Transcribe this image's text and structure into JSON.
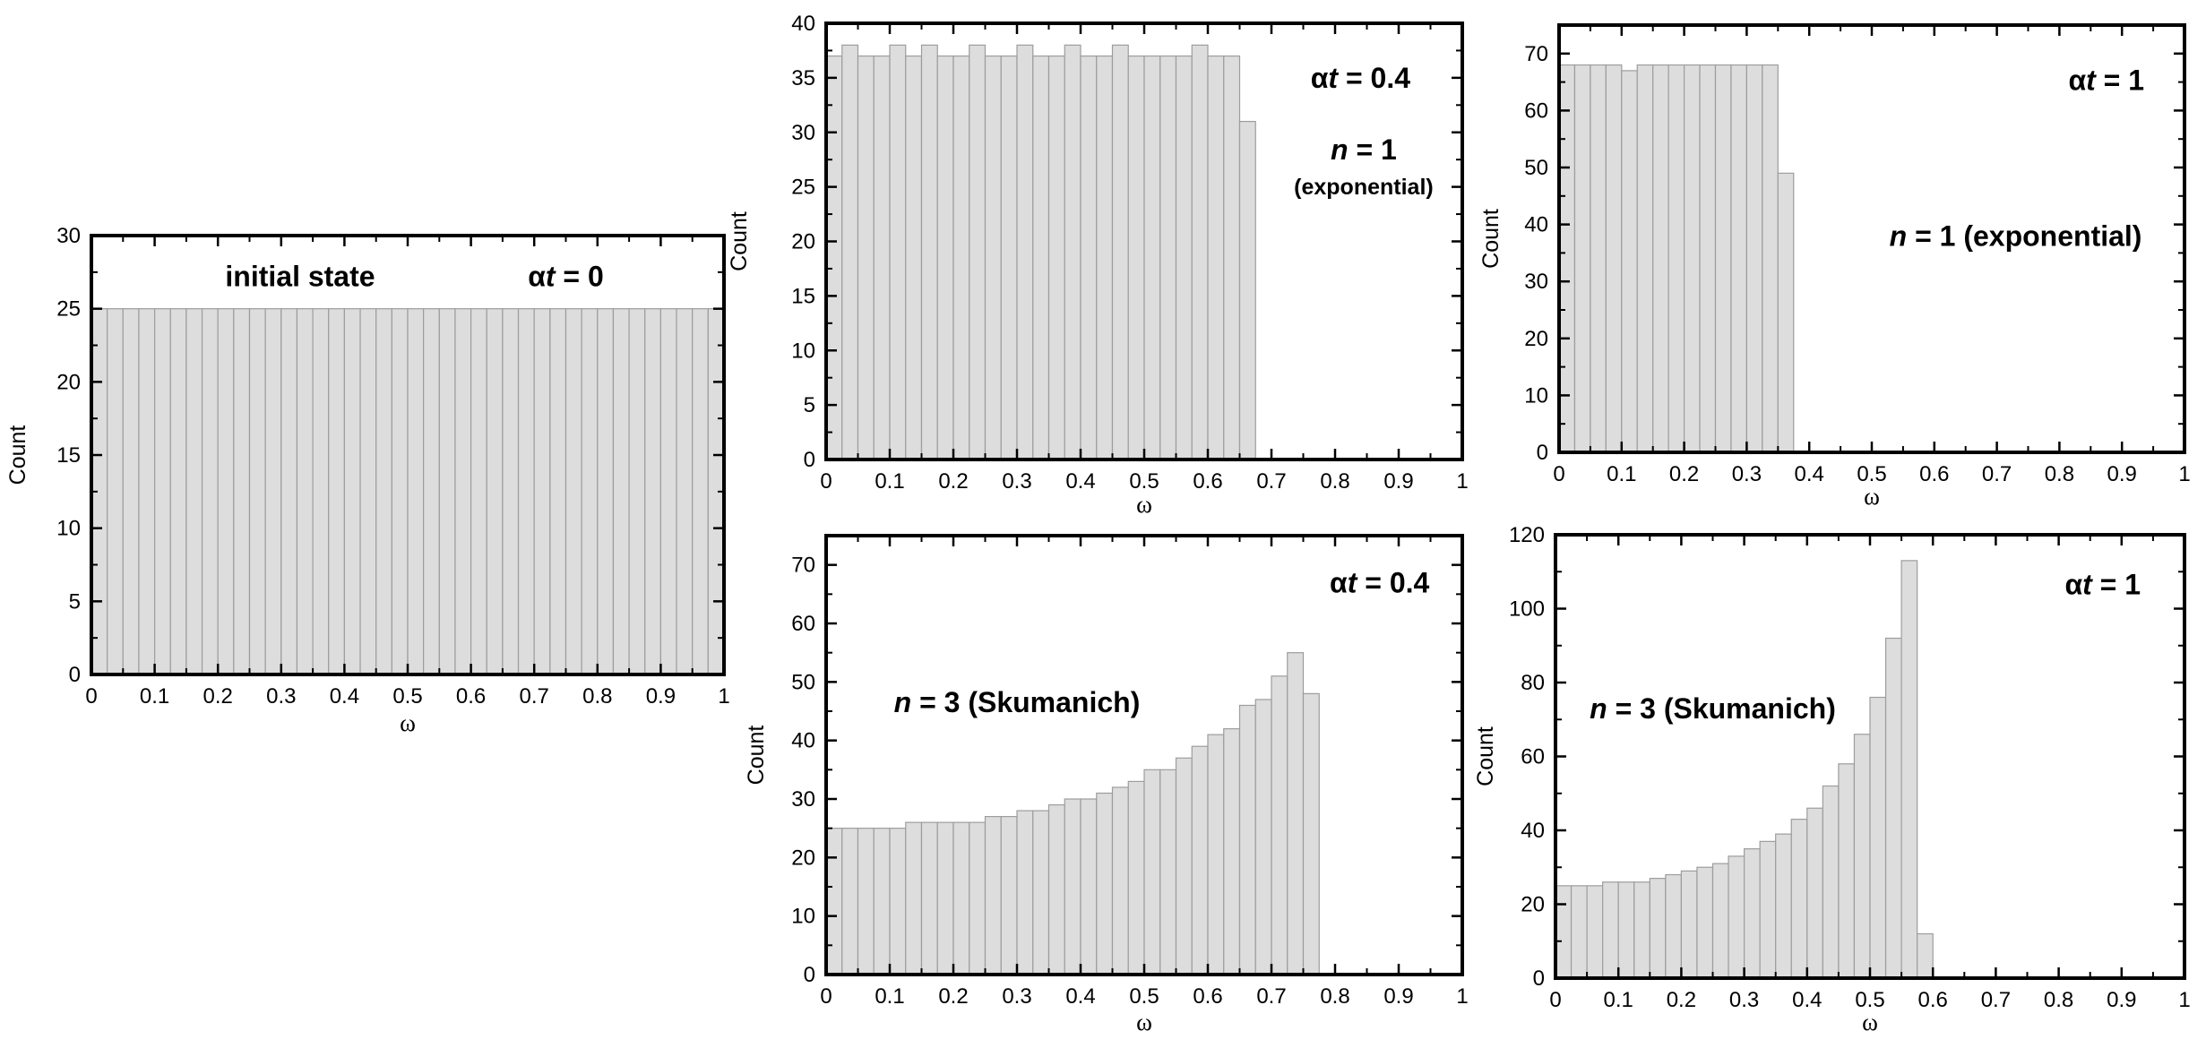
{
  "chart_data": [
    {
      "id": "panel-initial",
      "type": "bar",
      "title": "",
      "xlabel": "ω",
      "ylabel": "Count",
      "xlim": [
        0,
        1
      ],
      "ylim": [
        0,
        30
      ],
      "yticks": [
        0,
        5,
        10,
        15,
        20,
        25,
        30
      ],
      "xticks": [
        0,
        0.1,
        0.2,
        0.3,
        0.4,
        0.5,
        0.6,
        0.7,
        0.8,
        0.9,
        1
      ],
      "bin_width": 0.025,
      "values": [
        25,
        25,
        25,
        25,
        25,
        25,
        25,
        25,
        25,
        25,
        25,
        25,
        25,
        25,
        25,
        25,
        25,
        25,
        25,
        25,
        25,
        25,
        25,
        25,
        25,
        25,
        25,
        25,
        25,
        25,
        25,
        25,
        25,
        25,
        25,
        25,
        25,
        25,
        25,
        25
      ],
      "annotations": [
        {
          "parts": [
            {
              "text": "initial state"
            }
          ],
          "x": 0.33,
          "y": 27.2,
          "anchor": "middle",
          "size": "large"
        },
        {
          "parts": [
            {
              "text": "α"
            },
            {
              "text": "t",
              "italic": true
            },
            {
              "text": " = 0"
            }
          ],
          "x": 0.75,
          "y": 27.2,
          "anchor": "middle",
          "size": "large"
        }
      ],
      "grid": false,
      "legend": "none"
    },
    {
      "id": "panel-exp-04",
      "type": "bar",
      "title": "",
      "xlabel": "ω",
      "ylabel": "Count",
      "xlim": [
        0,
        1
      ],
      "ylim": [
        0,
        40
      ],
      "yticks": [
        0,
        5,
        10,
        15,
        20,
        25,
        30,
        35,
        40
      ],
      "xticks": [
        0,
        0.1,
        0.2,
        0.3,
        0.4,
        0.5,
        0.6,
        0.7,
        0.8,
        0.9,
        1
      ],
      "bin_width": 0.025,
      "values": [
        37,
        38,
        37,
        37,
        38,
        37,
        38,
        37,
        37,
        38,
        37,
        37,
        38,
        37,
        37,
        38,
        37,
        37,
        38,
        37,
        37,
        37,
        37,
        38,
        37,
        37,
        31
      ],
      "annotations": [
        {
          "parts": [
            {
              "text": "α"
            },
            {
              "text": "t",
              "italic": true
            },
            {
              "text": " = 0.4"
            }
          ],
          "x": 0.84,
          "y": 35.0,
          "anchor": "middle",
          "size": "large"
        },
        {
          "parts": [
            {
              "text": "n",
              "italic": true
            },
            {
              "text": " = 1"
            }
          ],
          "x": 0.845,
          "y": 28.4,
          "anchor": "middle",
          "size": "large"
        },
        {
          "parts": [
            {
              "text": "(exponential)"
            }
          ],
          "x": 0.845,
          "y": 25.2,
          "anchor": "middle",
          "size": "small"
        }
      ],
      "grid": false,
      "legend": "none"
    },
    {
      "id": "panel-exp-1",
      "type": "bar",
      "title": "",
      "xlabel": "ω",
      "ylabel": "Count",
      "xlim": [
        0,
        1
      ],
      "ylim": [
        0,
        75
      ],
      "yticks": [
        0,
        10,
        20,
        30,
        40,
        50,
        60,
        70
      ],
      "xticks": [
        0,
        0.1,
        0.2,
        0.3,
        0.4,
        0.5,
        0.6,
        0.7,
        0.8,
        0.9,
        1
      ],
      "bin_width": 0.025,
      "values": [
        68,
        68,
        68,
        68,
        67,
        68,
        68,
        68,
        68,
        68,
        68,
        68,
        68,
        68,
        49
      ],
      "annotations": [
        {
          "parts": [
            {
              "text": "α"
            },
            {
              "text": "t",
              "italic": true
            },
            {
              "text": " = 1"
            }
          ],
          "x": 0.875,
          "y": 65.3,
          "anchor": "middle",
          "size": "large"
        },
        {
          "parts": [
            {
              "text": "n",
              "italic": true
            },
            {
              "text": " = 1  (exponential)"
            }
          ],
          "x": 0.73,
          "y": 38.0,
          "anchor": "middle",
          "size": "large"
        }
      ],
      "grid": false,
      "legend": "none"
    },
    {
      "id": "panel-skum-04",
      "type": "bar",
      "title": "",
      "xlabel": "ω",
      "ylabel": "Count",
      "xlim": [
        0,
        1
      ],
      "ylim": [
        0,
        75
      ],
      "yticks": [
        0,
        10,
        20,
        30,
        40,
        50,
        60,
        70
      ],
      "xticks": [
        0,
        0.1,
        0.2,
        0.3,
        0.4,
        0.5,
        0.6,
        0.7,
        0.8,
        0.9,
        1
      ],
      "bin_width": 0.025,
      "values": [
        25,
        25,
        25,
        25,
        25,
        26,
        26,
        26,
        26,
        26,
        27,
        27,
        28,
        28,
        29,
        30,
        30,
        31,
        32,
        33,
        35,
        35,
        37,
        39,
        41,
        42,
        46,
        47,
        51,
        55,
        48
      ],
      "annotations": [
        {
          "parts": [
            {
              "text": "α"
            },
            {
              "text": "t",
              "italic": true
            },
            {
              "text": " = 0.4"
            }
          ],
          "x": 0.87,
          "y": 67.0,
          "anchor": "middle",
          "size": "large"
        },
        {
          "parts": [
            {
              "text": "n",
              "italic": true
            },
            {
              "text": " = 3  (Skumanich)"
            }
          ],
          "x": 0.3,
          "y": 46.5,
          "anchor": "middle",
          "size": "large"
        }
      ],
      "grid": false,
      "legend": "none"
    },
    {
      "id": "panel-skum-1",
      "type": "bar",
      "title": "",
      "xlabel": "ω",
      "ylabel": "Count",
      "xlim": [
        0,
        1
      ],
      "ylim": [
        0,
        120
      ],
      "yticks": [
        0,
        20,
        40,
        60,
        80,
        100,
        120
      ],
      "xticks": [
        0,
        0.1,
        0.2,
        0.3,
        0.4,
        0.5,
        0.6,
        0.7,
        0.8,
        0.9,
        1
      ],
      "bin_width": 0.025,
      "values": [
        25,
        25,
        25,
        26,
        26,
        26,
        27,
        28,
        29,
        30,
        31,
        33,
        35,
        37,
        39,
        43,
        46,
        52,
        58,
        66,
        76,
        92,
        113,
        12
      ],
      "annotations": [
        {
          "parts": [
            {
              "text": "α"
            },
            {
              "text": "t",
              "italic": true
            },
            {
              "text": " = 1"
            }
          ],
          "x": 0.87,
          "y": 106.5,
          "anchor": "middle",
          "size": "large"
        },
        {
          "parts": [
            {
              "text": "n",
              "italic": true
            },
            {
              "text": " = 3 (Skumanich)"
            }
          ],
          "x": 0.25,
          "y": 73.0,
          "anchor": "middle",
          "size": "large"
        }
      ],
      "grid": false,
      "legend": "none"
    }
  ]
}
